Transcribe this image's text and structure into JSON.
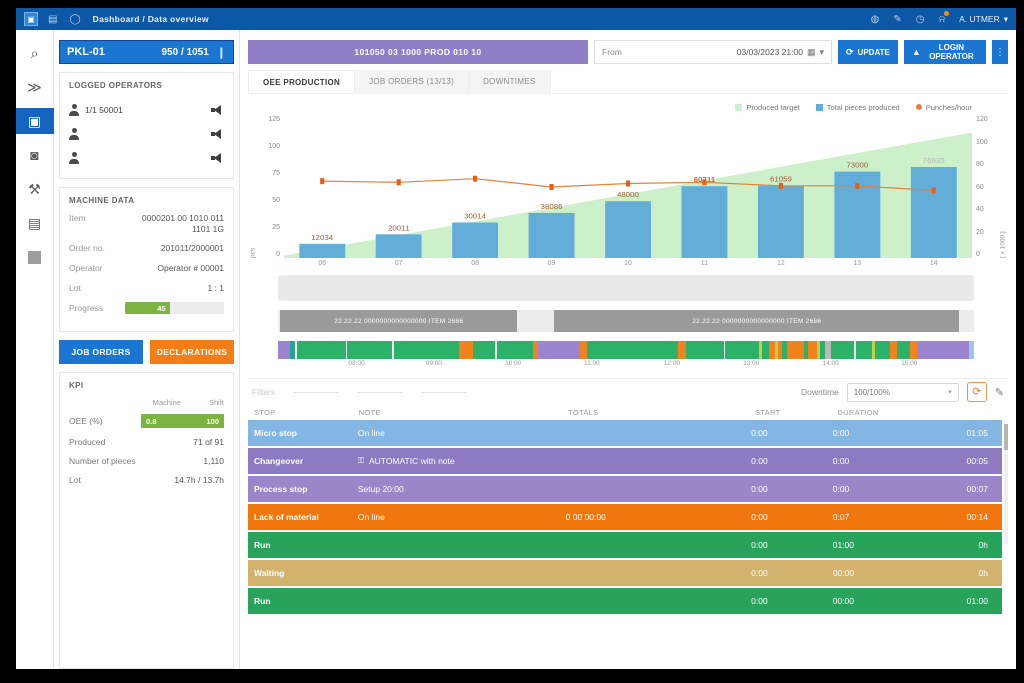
{
  "topbar": {
    "breadcrumb": "Dashboard / Data overview",
    "logo_glyph": "▣",
    "left_icons": [
      {
        "name": "apps-icon",
        "glyph": "▤"
      },
      {
        "name": "sync-icon",
        "glyph": "◯"
      }
    ],
    "right_icons": [
      {
        "name": "language-icon",
        "glyph": "◍",
        "badge": false
      },
      {
        "name": "edit-icon",
        "glyph": "✎",
        "badge": false
      },
      {
        "name": "clock-icon",
        "glyph": "◷",
        "badge": false
      },
      {
        "name": "bell-icon",
        "glyph": "⍾",
        "badge": true
      }
    ],
    "user": "A. UTMER",
    "user_caret": "▾"
  },
  "sidebar": {
    "items": [
      {
        "name": "search",
        "glyph": "⌕",
        "active": false
      },
      {
        "name": "fast-forward",
        "glyph": "≫",
        "active": false
      },
      {
        "name": "machine-dashboard",
        "glyph": "▣",
        "active": true
      },
      {
        "name": "messages",
        "glyph": "◙",
        "active": false
      },
      {
        "name": "tools",
        "glyph": "⚒",
        "active": false
      },
      {
        "name": "documents",
        "glyph": "▤",
        "active": false
      },
      {
        "name": "thumbnail",
        "glyph": "",
        "active": false
      }
    ]
  },
  "machine": {
    "id": "PKL-01",
    "counter": "950 / 1051",
    "menu_glyph": "❙",
    "operators": {
      "title": "Logged operators",
      "rows": [
        {
          "label": "1/1 50001"
        },
        {
          "label": ""
        },
        {
          "label": ""
        }
      ]
    },
    "data_card": {
      "title": "Machine data",
      "fields": [
        {
          "label": "Item",
          "value": "0000201 00 1010 011 1101 1G"
        },
        {
          "label": "Order no.",
          "value": "201011/2000001"
        },
        {
          "label": "Operator",
          "value": "Operator # 00001"
        },
        {
          "label": "Lot",
          "value": "1 : 1"
        }
      ],
      "progress_label": "Progress",
      "progress_text": "45",
      "progress_pct": 45
    },
    "buttons": {
      "primary": "JOB ORDERS",
      "secondary": "DECLARATIONS"
    },
    "kpi": {
      "title": "KPI",
      "col1": "Machine",
      "col2": "Shift",
      "oee_label": "OEE (%)",
      "oee_bar_left": "0.8",
      "oee_bar_right": "100",
      "rows": [
        {
          "label": "Produced",
          "value": "71 of 91"
        },
        {
          "label": "Number of pieces",
          "value": "1,110"
        },
        {
          "label": "Lot",
          "value": "14.7h / 13.7h"
        }
      ]
    }
  },
  "main": {
    "banner": "101050 03 1000 PROD 010 10",
    "date_filter": {
      "label": "From",
      "value": "03/03/2023 21:00",
      "calendar_glyph": "▦",
      "caret": "▾"
    },
    "update_button": "UPDATE",
    "update_icon": "⟳",
    "login_button": "LOGIN OPERATOR",
    "login_icon": "▲",
    "kebab": "⋮",
    "tabs": [
      {
        "label": "OEE PRODUCTION",
        "active": true
      },
      {
        "label": "JOB ORDERS (13/13)",
        "active": false
      },
      {
        "label": "DOWNTIMES",
        "active": false
      }
    ]
  },
  "chart_data": {
    "type": "bar",
    "title": "",
    "categories": [
      "06",
      "07",
      "08",
      "09",
      "10",
      "11",
      "12",
      "13",
      "14"
    ],
    "series": [
      {
        "name": "Produced target",
        "type": "area",
        "color": "#cdf0cb",
        "start": 2,
        "end": 106
      },
      {
        "name": "Total pieces produced",
        "type": "bar",
        "color": "#63aed8",
        "values": [
          12034,
          20011,
          30014,
          38086,
          48000,
          60711,
          61059,
          73000,
          76935
        ]
      },
      {
        "name": "Punches/hour",
        "type": "line",
        "color": "#e2823b",
        "values": [
          65,
          64,
          67,
          60,
          63,
          64,
          61,
          61,
          57
        ]
      }
    ],
    "bar_labels": [
      "12034",
      "20011",
      "30014",
      "38086",
      "48000",
      "60711",
      "61059",
      "73000",
      "76935"
    ],
    "highlight_label_index": 5,
    "last_label_muted": true,
    "ylim": [
      0,
      120
    ],
    "left_axis": {
      "ticks": [
        "125",
        "100",
        "75",
        "50",
        "25",
        "0"
      ],
      "title": "pcs"
    },
    "right_axis": {
      "ticks": [
        "120",
        "100",
        "80",
        "60",
        "40",
        "20",
        "0"
      ],
      "title": "[ x 1000 ]"
    },
    "legend_position": "top-right",
    "grid": false
  },
  "gantt": {
    "segments": [
      {
        "label": "22.22.22 0000000000000000 ITEM 2686",
        "left_pct": 0.3,
        "width_pct": 34.1
      },
      {
        "label": "22.22.22 0000000000000000 ITEM 2686",
        "left_pct": 39.7,
        "width_pct": 58.2
      }
    ]
  },
  "timeline": {
    "colors": {
      "g": "#2bb169",
      "o": "#f0831c",
      "p": "#9b85d0",
      "t": "#2aa198",
      "w": "#eef6f1",
      "y": "#c3cf4a",
      "gr": "#b9b9b9",
      "lb": "#9fc5e8"
    },
    "segments": [
      [
        "p",
        1.6
      ],
      [
        "t",
        0.7
      ],
      [
        "w",
        0.3
      ],
      [
        "g",
        6.8
      ],
      [
        "w",
        0.2
      ],
      [
        "g",
        6.2
      ],
      [
        "w",
        0.2
      ],
      [
        "g",
        9.0
      ],
      [
        "o",
        2.0
      ],
      [
        "g",
        3.0
      ],
      [
        "w",
        0.2
      ],
      [
        "g",
        5.0
      ],
      [
        "o",
        0.7
      ],
      [
        "p",
        5.8
      ],
      [
        "o",
        1.0
      ],
      [
        "g",
        12.5
      ],
      [
        "o",
        1.2
      ],
      [
        "g",
        5.2
      ],
      [
        "w",
        0.2
      ],
      [
        "g",
        4.6
      ],
      [
        "y",
        0.4
      ],
      [
        "g",
        1.0
      ],
      [
        "o",
        0.8
      ],
      [
        "y",
        0.4
      ],
      [
        "o",
        0.6
      ],
      [
        "g",
        0.7
      ],
      [
        "o",
        2.4
      ],
      [
        "g",
        0.5
      ],
      [
        "o",
        1.2
      ],
      [
        "y",
        0.4
      ],
      [
        "g",
        0.7
      ],
      [
        "gr",
        0.9
      ],
      [
        "g",
        3.2
      ],
      [
        "w",
        0.2
      ],
      [
        "g",
        2.3
      ],
      [
        "y",
        0.4
      ],
      [
        "g",
        2.0
      ],
      [
        "o",
        1.0
      ],
      [
        "g",
        1.8
      ],
      [
        "o",
        0.9
      ],
      [
        "p",
        7.3
      ],
      [
        "lb",
        0.6
      ]
    ],
    "axis": [
      {
        "t": "08:00",
        "x": 11.3
      },
      {
        "t": "09:00",
        "x": 22.4
      },
      {
        "t": "10:00",
        "x": 33.8
      },
      {
        "t": "11:00",
        "x": 45.1
      },
      {
        "t": "12:00",
        "x": 56.6
      },
      {
        "t": "13:00",
        "x": 68.0
      },
      {
        "t": "14:00",
        "x": 79.4
      },
      {
        "t": "15:00",
        "x": 90.7
      }
    ]
  },
  "downtimes": {
    "filters_label": "Filters",
    "right_label": "Downtime",
    "select_value": "100/100%",
    "refresh_glyph": "⟳",
    "pencil_glyph": "✎",
    "headers": [
      "Stop",
      "Note",
      "Totals",
      "Start",
      "Duration",
      ""
    ],
    "rows": [
      {
        "color": "#84b6e4",
        "type": "Micro stop",
        "note": "On line",
        "lock": false,
        "detail": "",
        "start": "0:00",
        "end": "0:00",
        "duration": "01:05"
      },
      {
        "color": "#8d7ac0",
        "type": "Changeover",
        "note": "AUTOMATIC with note",
        "lock": true,
        "detail": "",
        "start": "0:00",
        "end": "0:00",
        "duration": "00:05"
      },
      {
        "color": "#9b86c9",
        "type": "Process stop",
        "note": "Setup 20:00",
        "lock": false,
        "detail": "",
        "start": "0:00",
        "end": "0:00",
        "duration": "00:07"
      },
      {
        "color": "#f1760e",
        "type": "Lack of material",
        "note": "On line",
        "lock": false,
        "detail": "0 00 00:00",
        "start": "0:00",
        "end": "0:07",
        "duration": "00:14"
      },
      {
        "color": "#27a35b",
        "type": "Run",
        "note": "",
        "lock": false,
        "detail": "",
        "start": "0:00",
        "end": "01:00",
        "duration": "0h"
      },
      {
        "color": "#d3b26d",
        "type": "Waiting",
        "note": "",
        "lock": false,
        "detail": "",
        "start": "0:00",
        "end": "00:00",
        "duration": "0h"
      },
      {
        "color": "#27a35b",
        "type": "Run",
        "note": "",
        "lock": false,
        "detail": "",
        "start": "0:00",
        "end": "00:00",
        "duration": "01:00"
      }
    ]
  }
}
